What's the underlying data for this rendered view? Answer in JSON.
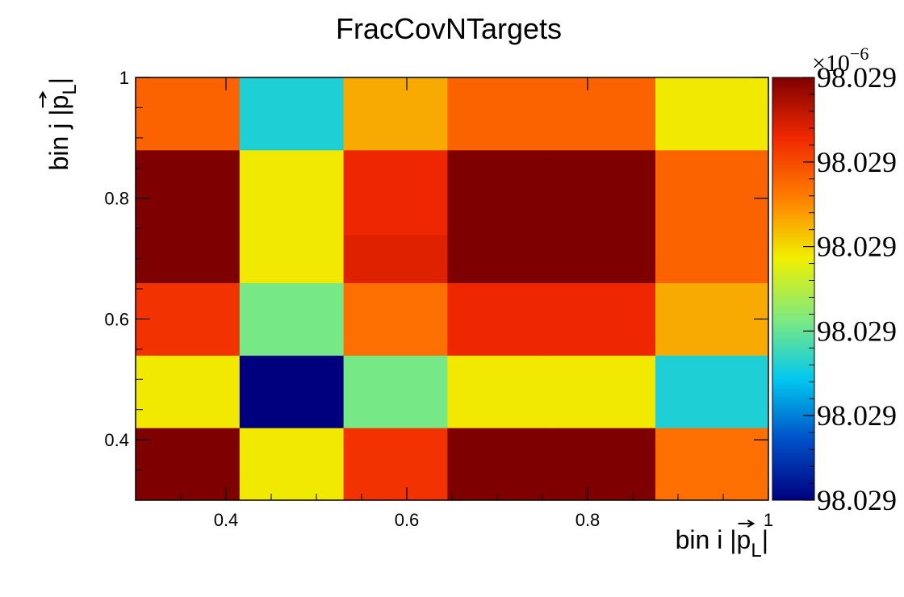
{
  "chart_data": {
    "type": "heatmap",
    "title": "FracCovNTargets",
    "xlabel": "bin i |p_L|",
    "ylabel": "bin j |p_L|",
    "xlabel_parts": {
      "prefix": "bin i |",
      "var": "p",
      "sub": "L",
      "suffix": "|"
    },
    "ylabel_parts": {
      "prefix": "bin j |",
      "var": "p",
      "sub": "L",
      "suffix": "|"
    },
    "xlim": [
      0.3,
      1.0
    ],
    "ylim": [
      0.3,
      1.0
    ],
    "x_edges": [
      0.3,
      0.415,
      0.53,
      0.645,
      0.76,
      0.875,
      1.0
    ],
    "y_edges": [
      0.3,
      0.42,
      0.54,
      0.66,
      0.74,
      0.88,
      1.0
    ],
    "x_ticks": [
      {
        "value": 0.4,
        "label": "0.4"
      },
      {
        "value": 0.6,
        "label": "0.6"
      },
      {
        "value": 0.8,
        "label": "0.8"
      },
      {
        "value": 1.0,
        "label": "1"
      }
    ],
    "y_ticks": [
      {
        "value": 0.4,
        "label": "0.4"
      },
      {
        "value": 0.6,
        "label": "0.6"
      },
      {
        "value": 0.8,
        "label": "0.8"
      },
      {
        "value": 1.0,
        "label": "1"
      }
    ],
    "z_levels_relative": [
      [
        1.0,
        0.58,
        0.84,
        1.0,
        1.0,
        0.74
      ],
      [
        0.58,
        0.0,
        0.42,
        0.58,
        0.58,
        0.32
      ],
      [
        0.84,
        0.42,
        0.74,
        0.86,
        0.86,
        0.66
      ],
      [
        1.0,
        0.58,
        0.88,
        1.0,
        1.0,
        0.76
      ],
      [
        1.0,
        0.58,
        0.86,
        1.0,
        1.0,
        0.76
      ],
      [
        0.76,
        0.32,
        0.66,
        0.76,
        0.76,
        0.58
      ]
    ],
    "colorbar": {
      "exponent_base": "×10",
      "exponent_power": "−6",
      "tick_labels": [
        "98.029",
        "98.029",
        "98.029",
        "98.029",
        "98.029",
        "98.029"
      ],
      "tick_levels": [
        0.0,
        0.2,
        0.4,
        0.6,
        0.8,
        1.0
      ],
      "palette": [
        "#00007f",
        "#0050c8",
        "#00c8f0",
        "#7fea7f",
        "#f0f000",
        "#ff7f00",
        "#f02800",
        "#7f0000"
      ]
    },
    "grid": false
  }
}
